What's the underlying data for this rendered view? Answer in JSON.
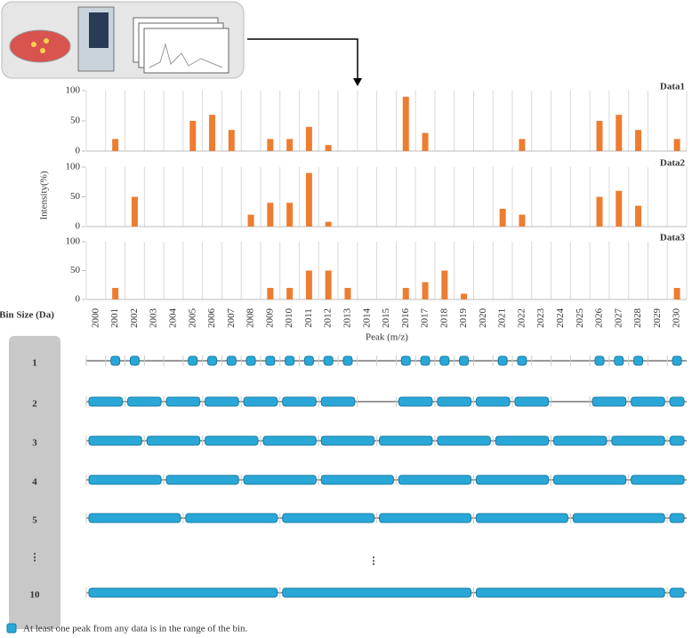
{
  "chart_data": [
    {
      "type": "bar",
      "title": "Data1",
      "color": "#ed7d31",
      "ylim": [
        0,
        100
      ],
      "yticks": [
        0,
        50,
        100
      ],
      "grid": true,
      "values": [
        0,
        20,
        0,
        0,
        0,
        50,
        60,
        35,
        0,
        20,
        20,
        40,
        10,
        0,
        0,
        0,
        90,
        30,
        0,
        0,
        0,
        0,
        20,
        0,
        0,
        0,
        50,
        60,
        35,
        0,
        20
      ]
    },
    {
      "type": "bar",
      "title": "Data2",
      "color": "#ed7d31",
      "ylim": [
        0,
        100
      ],
      "yticks": [
        0,
        50,
        100
      ],
      "grid": true,
      "y_label": "Intensity(%)",
      "values": [
        0,
        0,
        50,
        0,
        0,
        0,
        0,
        0,
        20,
        40,
        40,
        90,
        8,
        0,
        0,
        0,
        0,
        0,
        0,
        0,
        0,
        30,
        20,
        0,
        0,
        0,
        50,
        60,
        35,
        0,
        0
      ]
    },
    {
      "type": "bar",
      "title": "Data3",
      "color": "#ed7d31",
      "ylim": [
        0,
        100
      ],
      "yticks": [
        0,
        50,
        100
      ],
      "grid": true,
      "x_label": "Peak (m/z)",
      "categories": [
        "2000",
        "2001",
        "2002",
        "2003",
        "2004",
        "2005",
        "2006",
        "2007",
        "2008",
        "2009",
        "2010",
        "2011",
        "2012",
        "2013",
        "2014",
        "2015",
        "2016",
        "2017",
        "2018",
        "2019",
        "2020",
        "2021",
        "2022",
        "2023",
        "2024",
        "2025",
        "2026",
        "2027",
        "2028",
        "2029",
        "2030"
      ],
      "values": [
        0,
        20,
        0,
        0,
        0,
        0,
        0,
        0,
        0,
        20,
        20,
        50,
        50,
        20,
        0,
        0,
        20,
        30,
        50,
        10,
        0,
        0,
        0,
        0,
        0,
        0,
        0,
        0,
        0,
        0,
        20
      ]
    }
  ],
  "bin_panel": {
    "title": "Bin Size (Da)",
    "sizes": [
      1,
      2,
      3,
      4,
      5,
      10
    ],
    "color": "#29a8d8",
    "legend": "At least one peak from any data is in the range of the bin."
  }
}
